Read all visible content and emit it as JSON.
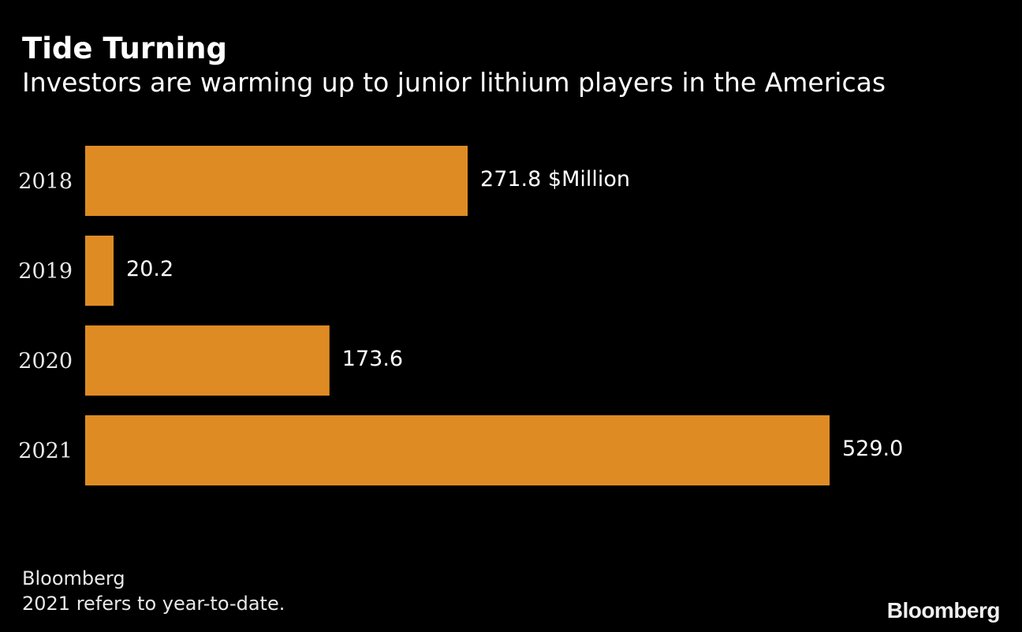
{
  "title": "Tide Turning",
  "subtitle": "Investors are warming up to junior lithium players in the Americas",
  "footer": {
    "source": "Bloomberg",
    "note": "2021 refers to year-to-date."
  },
  "brand": "Bloomberg",
  "colors": {
    "background": "#000000",
    "bar": "#df8b24",
    "text": "#ffffff",
    "category_text": "#e8e8e8"
  },
  "chart_data": {
    "type": "bar",
    "orientation": "horizontal",
    "categories": [
      "2018",
      "2019",
      "2020",
      "2021"
    ],
    "values": [
      271.8,
      20.2,
      173.6,
      529.0
    ],
    "value_labels": [
      "271.8 $Million",
      "20.2",
      "173.6",
      "529.0"
    ],
    "xlim": [
      0,
      529.0
    ],
    "grid": false,
    "title": "Tide Turning",
    "subtitle": "Investors are warming up to junior lithium players in the Americas"
  }
}
